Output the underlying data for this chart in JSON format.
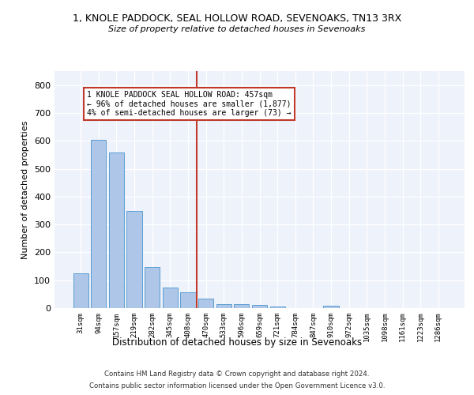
{
  "title1": "1, KNOLE PADDOCK, SEAL HOLLOW ROAD, SEVENOAKS, TN13 3RX",
  "title2": "Size of property relative to detached houses in Sevenoaks",
  "xlabel": "Distribution of detached houses by size in Sevenoaks",
  "ylabel": "Number of detached properties",
  "categories": [
    "31sqm",
    "94sqm",
    "157sqm",
    "219sqm",
    "282sqm",
    "345sqm",
    "408sqm",
    "470sqm",
    "533sqm",
    "596sqm",
    "659sqm",
    "721sqm",
    "784sqm",
    "847sqm",
    "910sqm",
    "972sqm",
    "1035sqm",
    "1098sqm",
    "1161sqm",
    "1223sqm",
    "1286sqm"
  ],
  "values": [
    125,
    603,
    557,
    348,
    148,
    75,
    57,
    35,
    14,
    13,
    12,
    5,
    0,
    0,
    8,
    0,
    0,
    0,
    0,
    0,
    0
  ],
  "bar_color": "#aec6e8",
  "bar_edge_color": "#5a9fd4",
  "vline_color": "#c0392b",
  "annotation_text": "1 KNOLE PADDOCK SEAL HOLLOW ROAD: 457sqm\n← 96% of detached houses are smaller (1,877)\n4% of semi-detached houses are larger (73) →",
  "annotation_box_color": "#ffffff",
  "annotation_box_edge": "#c0392b",
  "background_color": "#eef2fb",
  "grid_color": "#ffffff",
  "footer1": "Contains HM Land Registry data © Crown copyright and database right 2024.",
  "footer2": "Contains public sector information licensed under the Open Government Licence v3.0.",
  "ylim": [
    0,
    850
  ],
  "yticks": [
    0,
    100,
    200,
    300,
    400,
    500,
    600,
    700,
    800
  ]
}
